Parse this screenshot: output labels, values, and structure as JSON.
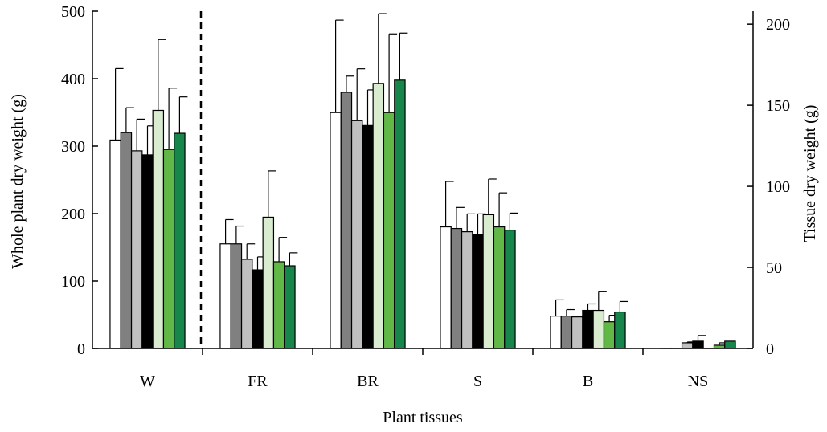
{
  "chart_data": {
    "type": "bar",
    "xlabel": "Plant tissues",
    "ylabel_left": "Whole plant dry weight (g)",
    "ylabel_right": "Tissue dry weight (g)",
    "ylim_left": [
      0,
      500
    ],
    "ylim_right": [
      0,
      208
    ],
    "yticks_left": [
      "0",
      "100",
      "200",
      "300",
      "400",
      "500"
    ],
    "yticks_right": [
      "0",
      "50",
      "100",
      "150",
      "200"
    ],
    "categories": [
      "W",
      "FR",
      "BR",
      "S",
      "B",
      "NS"
    ],
    "category_axis": [
      "left",
      "right",
      "right",
      "right",
      "right",
      "right"
    ],
    "divider_after_category": "W",
    "legend": "none",
    "grid": false,
    "series": [
      {
        "color": "#ffffff",
        "values": [
          309,
          64.5,
          145.5,
          75,
          20,
          0.2
        ],
        "errors": [
          106,
          15,
          57,
          28,
          10,
          0
        ]
      },
      {
        "color": "#808080",
        "values": [
          320,
          64.5,
          158,
          74,
          20,
          0.2
        ],
        "errors": [
          37,
          11,
          10,
          13,
          4,
          0
        ]
      },
      {
        "color": "#c0c0c0",
        "values": [
          293,
          55,
          140.5,
          72,
          19.5,
          3.5
        ],
        "errors": [
          47,
          9.5,
          32,
          11,
          0.5,
          0.5
        ]
      },
      {
        "color": "#000000",
        "values": [
          287,
          48.5,
          137.5,
          70.5,
          23.5,
          4.5
        ],
        "errors": [
          43,
          8,
          22,
          12.5,
          4,
          3.5
        ]
      },
      {
        "color": "#d9ecd0",
        "values": [
          353,
          81,
          163.5,
          82.5,
          23.5,
          0.2
        ],
        "errors": [
          105,
          28.5,
          43,
          22,
          11.5,
          0
        ]
      },
      {
        "color": "#61b847",
        "values": [
          295,
          53.5,
          145.5,
          75,
          16.5,
          2
        ],
        "errors": [
          91,
          15,
          48.5,
          21,
          4,
          1.5
        ]
      },
      {
        "color": "#17864a",
        "values": [
          319,
          51,
          165.5,
          73,
          22.5,
          4.5
        ],
        "errors": [
          54,
          8,
          29,
          10.5,
          6.5,
          0
        ]
      }
    ]
  }
}
